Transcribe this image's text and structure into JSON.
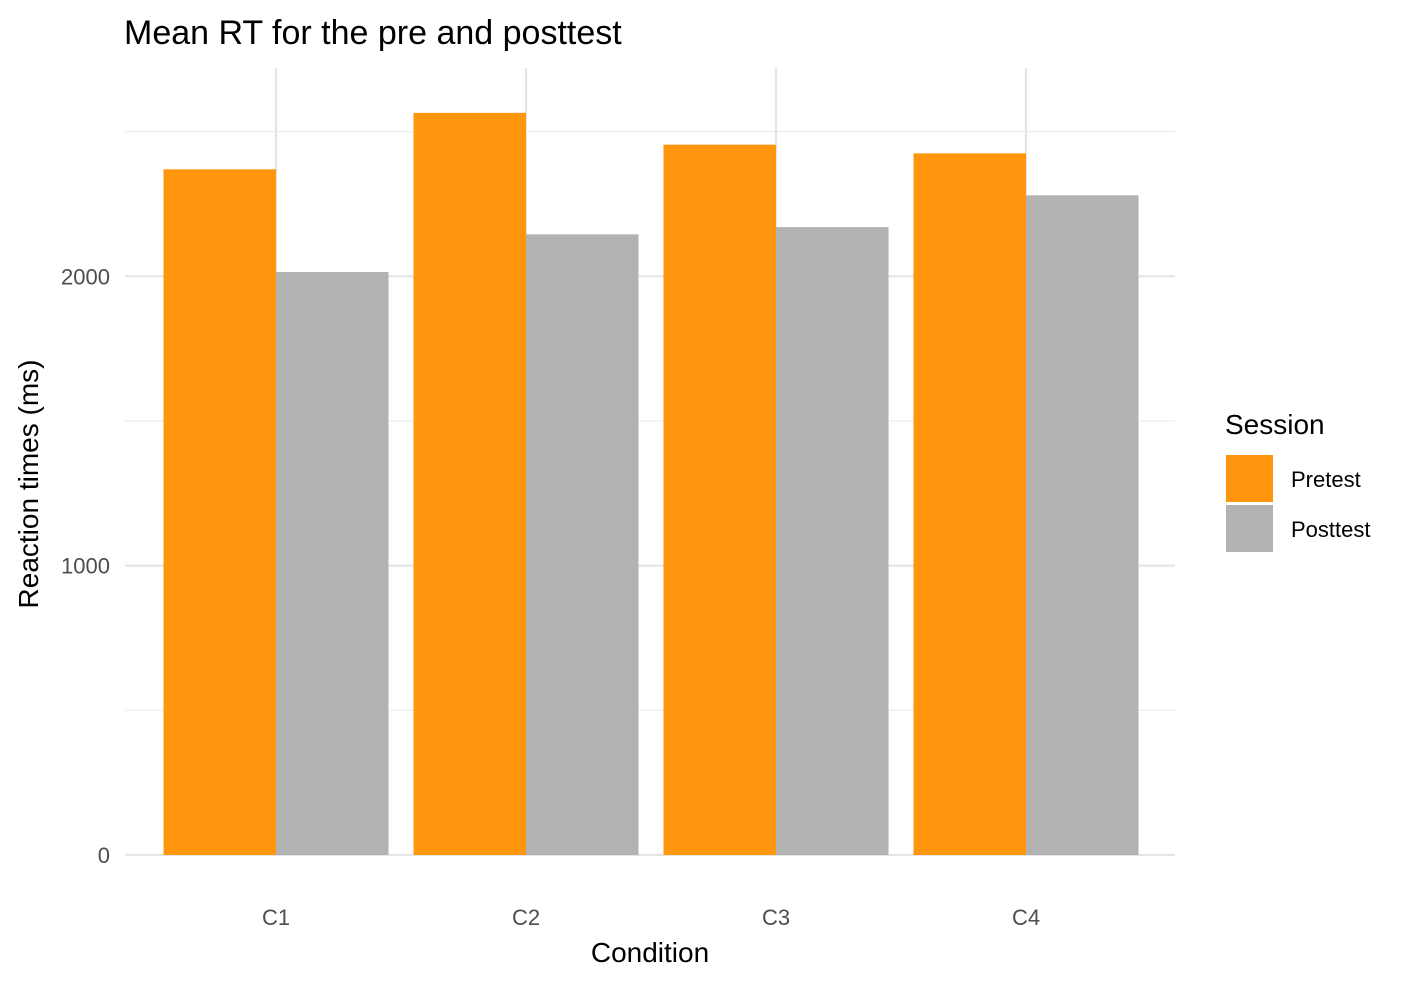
{
  "chart_data": {
    "type": "bar",
    "title": "Mean RT for the pre and posttest",
    "xlabel": "Condition",
    "ylabel": "Reaction times (ms)",
    "categories": [
      "C1",
      "C2",
      "C3",
      "C4"
    ],
    "series": [
      {
        "name": "Pretest",
        "color": "#FF960E",
        "values": [
          2370,
          2565,
          2455,
          2425
        ]
      },
      {
        "name": "Posttest",
        "color": "#B2B2B2",
        "values": [
          2015,
          2145,
          2170,
          2280
        ]
      }
    ],
    "ylim": [
      0,
      2720
    ],
    "y_ticks": [
      0,
      1000,
      2000
    ],
    "y_tick_labels": [
      "0",
      "1000",
      "2000"
    ],
    "grid": true,
    "legend": {
      "title": "Session",
      "position": "right"
    }
  }
}
